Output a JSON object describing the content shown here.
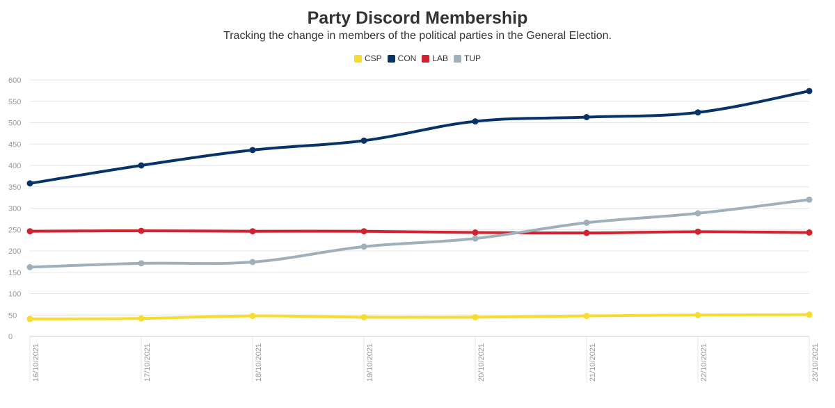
{
  "chart_data": {
    "type": "line",
    "title": "Party Discord Membership",
    "subtitle": "Tracking the change in members of the political parties in the General Election.",
    "xlabel": "",
    "ylabel": "",
    "categories": [
      "16/10/2021",
      "17/10/2021",
      "18/10/2021",
      "19/10/2021",
      "20/10/2021",
      "21/10/2021",
      "22/10/2021",
      "23/10/2021"
    ],
    "ylim": [
      0,
      600
    ],
    "yticks": [
      0,
      50,
      100,
      150,
      200,
      250,
      300,
      350,
      400,
      450,
      500,
      550,
      600
    ],
    "grid": true,
    "legend_position": "top-center",
    "series": [
      {
        "name": "CSP",
        "color": "#f7dc30",
        "values": [
          41,
          42,
          48,
          45,
          45,
          48,
          50,
          51
        ]
      },
      {
        "name": "CON",
        "color": "#083368",
        "values": [
          358,
          400,
          436,
          458,
          503,
          513,
          524,
          574
        ]
      },
      {
        "name": "LAB",
        "color": "#d1222f",
        "values": [
          246,
          247,
          246,
          246,
          243,
          242,
          245,
          243
        ]
      },
      {
        "name": "TUP",
        "color": "#a0b0ba",
        "values": [
          162,
          171,
          174,
          210,
          229,
          266,
          288,
          320
        ]
      }
    ]
  }
}
